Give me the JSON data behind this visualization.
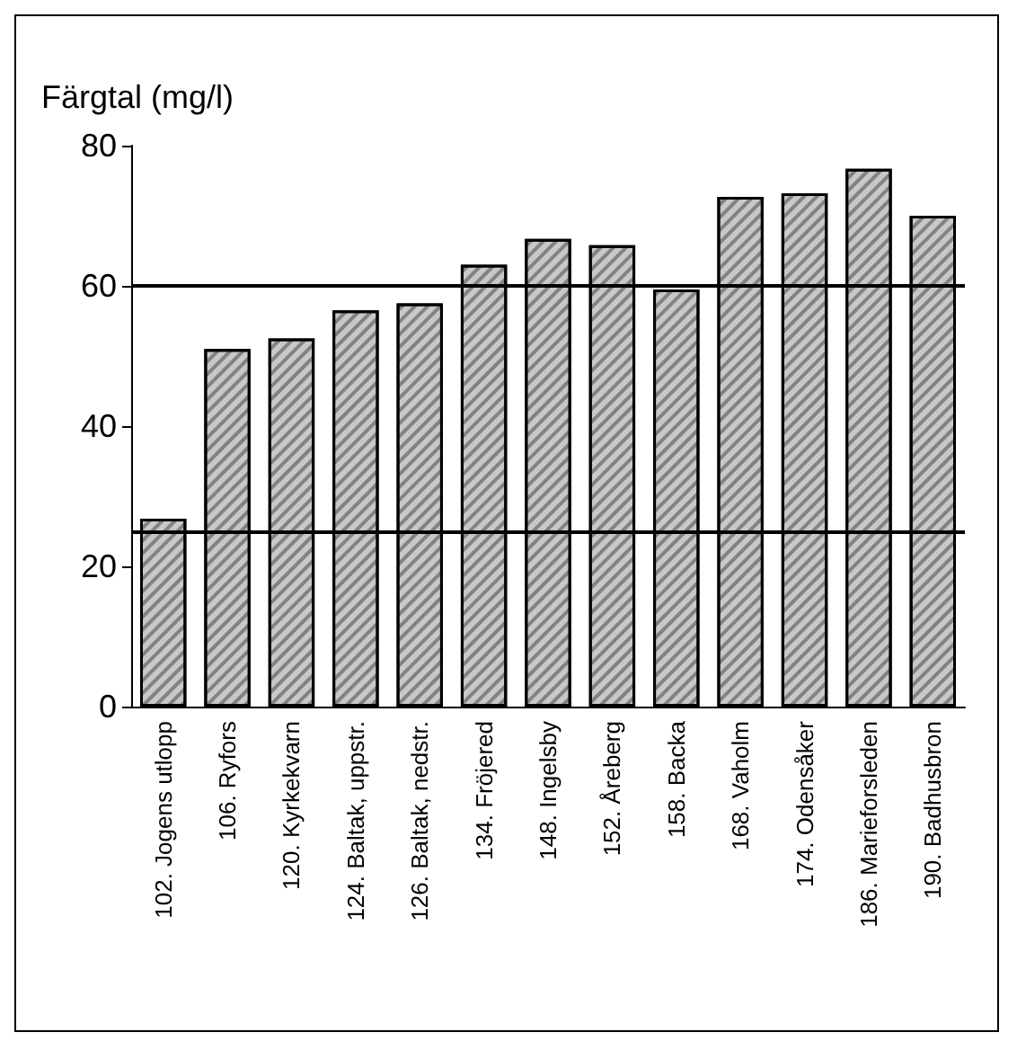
{
  "chart_data": {
    "type": "bar",
    "ylabel": "Färgtal (mg/l)",
    "categories": [
      "102. Jogens utlopp",
      "106. Ryfors",
      "120. Kyrkekvarn",
      "124. Baltak, uppstr.",
      "126. Baltak, nedstr.",
      "134. Fröjered",
      "148. Ingelsby",
      "152. Åreberg",
      "158. Backa",
      "168. Vaholm",
      "174. Odensåker",
      "186. Marieforsleden",
      "190. Badhusbron"
    ],
    "values": [
      26.8,
      51,
      52.5,
      56.5,
      57.5,
      63,
      66.7,
      65.8,
      59.5,
      72.7,
      73.2,
      76.7,
      70
    ],
    "color": "#c8c8c8",
    "ylim": [
      0,
      80
    ],
    "yticks": [
      0,
      20,
      40,
      60,
      80
    ],
    "grid": false,
    "ref_lines": [
      {
        "axis": "y",
        "value": 60,
        "color": "#000000"
      },
      {
        "axis": "y",
        "value": 25,
        "color": "#000000"
      }
    ]
  }
}
